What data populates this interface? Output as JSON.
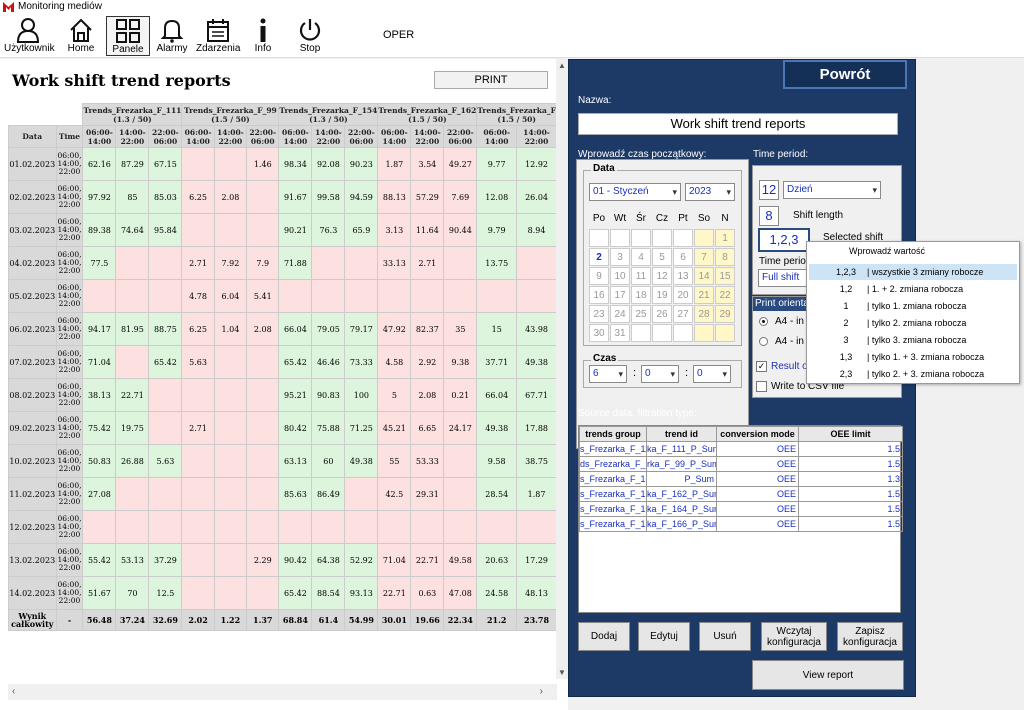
{
  "window": {
    "title": "Monitoring mediów"
  },
  "toolbar": {
    "items": [
      {
        "label": "Użytkownik",
        "icon": "user-icon"
      },
      {
        "label": "Home",
        "icon": "home-icon"
      },
      {
        "label": "Panele",
        "icon": "panels-icon"
      },
      {
        "label": "Alarmy",
        "icon": "bell-icon"
      },
      {
        "label": "Zdarzenia",
        "icon": "calendar-icon"
      },
      {
        "label": "Info",
        "icon": "info-icon"
      },
      {
        "label": "Stop",
        "icon": "power-icon"
      }
    ],
    "user": "OPER"
  },
  "report": {
    "title": "Work shift trend reports",
    "print_label": "PRINT",
    "headers": {
      "date": "Data",
      "time": "Time"
    },
    "groups": [
      {
        "name": "Trends_Frezarka_F_111",
        "sub": "(1.3 / 50)"
      },
      {
        "name": "Trends_Frezarka_F_99",
        "sub": "(1.5 / 50)"
      },
      {
        "name": "Trends_Frezarka_F_154",
        "sub": "(1.3 / 50)"
      },
      {
        "name": "Trends_Frezarka_F_162",
        "sub": "(1.5 / 50)"
      },
      {
        "name": "Trends_Frezarka_F",
        "sub": "(1.5 / 50)"
      }
    ],
    "shifts": [
      "06:00-14:00",
      "14:00-22:00",
      "22:00-06:00"
    ],
    "time_label": "06:00, 14:00, 22:00",
    "rows": [
      {
        "date": "01.02.2023",
        "v": [
          "62.16",
          "87.29",
          "67.15",
          "",
          "",
          "1.46",
          "98.34",
          "92.08",
          "90.23",
          "1.87",
          "3.54",
          "49.27",
          "9.77",
          "12.92"
        ]
      },
      {
        "date": "02.02.2023",
        "v": [
          "97.92",
          "85",
          "85.03",
          "6.25",
          "2.08",
          "",
          "91.67",
          "99.58",
          "94.59",
          "88.13",
          "57.29",
          "7.69",
          "12.08",
          "26.04"
        ]
      },
      {
        "date": "03.02.2023",
        "v": [
          "89.38",
          "74.64",
          "95.84",
          "",
          "",
          "",
          "90.21",
          "76.3",
          "65.9",
          "3.13",
          "11.64",
          "90.44",
          "9.79",
          "8.94"
        ]
      },
      {
        "date": "04.02.2023",
        "v": [
          "77.5",
          "",
          "",
          "2.71",
          "7.92",
          "7.9",
          "71.88",
          "",
          "",
          "33.13",
          "2.71",
          "",
          "13.75",
          ""
        ]
      },
      {
        "date": "05.02.2023",
        "v": [
          "",
          "",
          "",
          "4.78",
          "6.04",
          "5.41",
          "",
          "",
          "",
          "",
          "",
          "",
          "",
          ""
        ]
      },
      {
        "date": "06.02.2023",
        "v": [
          "94.17",
          "81.95",
          "88.75",
          "6.25",
          "1.04",
          "2.08",
          "66.04",
          "79.05",
          "79.17",
          "47.92",
          "82.37",
          "35",
          "15",
          "43.98"
        ]
      },
      {
        "date": "07.02.2023",
        "v": [
          "71.04",
          "",
          "65.42",
          "5.63",
          "",
          "",
          "65.42",
          "46.46",
          "73.33",
          "4.58",
          "2.92",
          "9.38",
          "37.71",
          "49.38"
        ]
      },
      {
        "date": "08.02.2023",
        "v": [
          "38.13",
          "22.71",
          "",
          "",
          "",
          "",
          "95.21",
          "90.83",
          "100",
          "5",
          "2.08",
          "0.21",
          "66.04",
          "67.71"
        ]
      },
      {
        "date": "09.02.2023",
        "v": [
          "75.42",
          "19.75",
          "",
          "2.71",
          "",
          "",
          "80.42",
          "75.88",
          "71.25",
          "45.21",
          "6.65",
          "24.17",
          "49.38",
          "17.88"
        ]
      },
      {
        "date": "10.02.2023",
        "v": [
          "50.83",
          "26.88",
          "5.63",
          "",
          "",
          "",
          "63.13",
          "60",
          "49.38",
          "55",
          "53.33",
          "",
          "9.58",
          "38.75"
        ]
      },
      {
        "date": "11.02.2023",
        "v": [
          "27.08",
          "",
          "",
          "",
          "",
          "",
          "85.63",
          "86.49",
          "",
          "42.5",
          "29.31",
          "",
          "28.54",
          "1.87"
        ]
      },
      {
        "date": "12.02.2023",
        "v": [
          "",
          "",
          "",
          "",
          "",
          "",
          "",
          "",
          "",
          "",
          "",
          "",
          "",
          ""
        ]
      },
      {
        "date": "13.02.2023",
        "v": [
          "55.42",
          "53.13",
          "37.29",
          "",
          "",
          "2.29",
          "90.42",
          "64.38",
          "52.92",
          "71.04",
          "22.71",
          "49.58",
          "20.63",
          "17.29"
        ]
      },
      {
        "date": "14.02.2023",
        "v": [
          "51.67",
          "70",
          "12.5",
          "",
          "",
          "",
          "65.42",
          "88.54",
          "93.13",
          "22.71",
          "0.63",
          "47.08",
          "24.58",
          "48.13"
        ]
      }
    ],
    "total": {
      "label": "Wynik całkowity",
      "dash": "-",
      "v": [
        "56.48",
        "37.24",
        "32.69",
        "2.02",
        "1.22",
        "1.37",
        "68.84",
        "61.4",
        "54.99",
        "30.01",
        "19.66",
        "22.34",
        "21.2",
        "23.78"
      ]
    }
  },
  "panel": {
    "back_label": "Powrót",
    "name_label": "Nazwa:",
    "name_value": "Work shift trend reports",
    "start_label": "Wprowadź czas początkowy:",
    "date_group": "Data",
    "month_value": "01 - Styczeń",
    "year_value": "2023",
    "weekdays": [
      "Po",
      "Wt",
      "Śr",
      "Cz",
      "Pt",
      "So",
      "N"
    ],
    "calendar_days": [
      "",
      "",
      "",
      "",
      "",
      "",
      "1",
      "2",
      "3",
      "4",
      "5",
      "6",
      "7",
      "8",
      "9",
      "10",
      "11",
      "12",
      "13",
      "14",
      "15",
      "16",
      "17",
      "18",
      "19",
      "20",
      "21",
      "22",
      "23",
      "24",
      "25",
      "26",
      "27",
      "28",
      "29",
      "30",
      "31",
      "",
      "",
      "",
      "",
      ""
    ],
    "time_group": "Czas",
    "hour_value": "6",
    "minute_value": "0",
    "second_value": "0",
    "time_sep": ":",
    "period_label": "Time period:",
    "period_value": "12",
    "period_unit": "Dzień",
    "shift_length_value": "8",
    "shift_length_label": "Shift length",
    "selected_shift_value": "1,2,3",
    "selected_shift_label": "Selected shift",
    "time_period_short": "Time perio",
    "full_shift_value": "Full shift",
    "orient_label": "Print orienta",
    "orient_opt1": "A4 - in",
    "orient_opt2": "A4 - in",
    "result_label": "Result o",
    "csv_label": "Write to CSV file",
    "source_label": "Source data, filtration type:",
    "src_headers": [
      "trends group",
      "trend id",
      "conversion mode",
      "OEE limit"
    ],
    "src_rows": [
      [
        "s_Frezarka_F_111",
        "ka_F_111_P_Sum",
        "OEE",
        "1.5"
      ],
      [
        "ds_Frezarka_F_99",
        "rka_F_99_P_Sum",
        "OEE",
        "1.5"
      ],
      [
        "s_Frezarka_F_154",
        "P_Sum",
        "OEE",
        "1.3"
      ],
      [
        "s_Frezarka_F_162",
        "ka_F_162_P_Sum",
        "OEE",
        "1.5"
      ],
      [
        "s_Frezarka_F_164",
        "ka_F_164_P_Sum",
        "OEE",
        "1.5"
      ],
      [
        "s_Frezarka_F_166",
        "ka_F_166_P_Sum",
        "OEE",
        "1.5"
      ]
    ],
    "buttons": {
      "add": "Dodaj",
      "edit": "Edytuj",
      "remove": "Usuń",
      "load": "Wczytaj konfiguracja",
      "save": "Zapisz konfiguracja",
      "view": "View report"
    }
  },
  "popup": {
    "title": "Wprowadź wartość",
    "options": [
      {
        "code": "1,2,3",
        "desc": "| wszystkie 3 zmiany robocze"
      },
      {
        "code": "1,2",
        "desc": "| 1. + 2. zmiana robocza"
      },
      {
        "code": "1",
        "desc": "| tylko 1. zmiana robocza"
      },
      {
        "code": "2",
        "desc": "| tylko 2. zmiana robocza"
      },
      {
        "code": "3",
        "desc": "| tylko 3. zmiana robocza"
      },
      {
        "code": "1,3",
        "desc": "| tylko 1. + 3. zmiana robocza"
      },
      {
        "code": "2,3",
        "desc": "| tylko 2. + 3. zmiana robocza"
      }
    ]
  },
  "colors": {
    "panel": "#1d3a66",
    "good": "#dcf5dc",
    "bad": "#fde0e0",
    "header": "#d9d9d9",
    "accent_text": "#1a2fbf"
  }
}
